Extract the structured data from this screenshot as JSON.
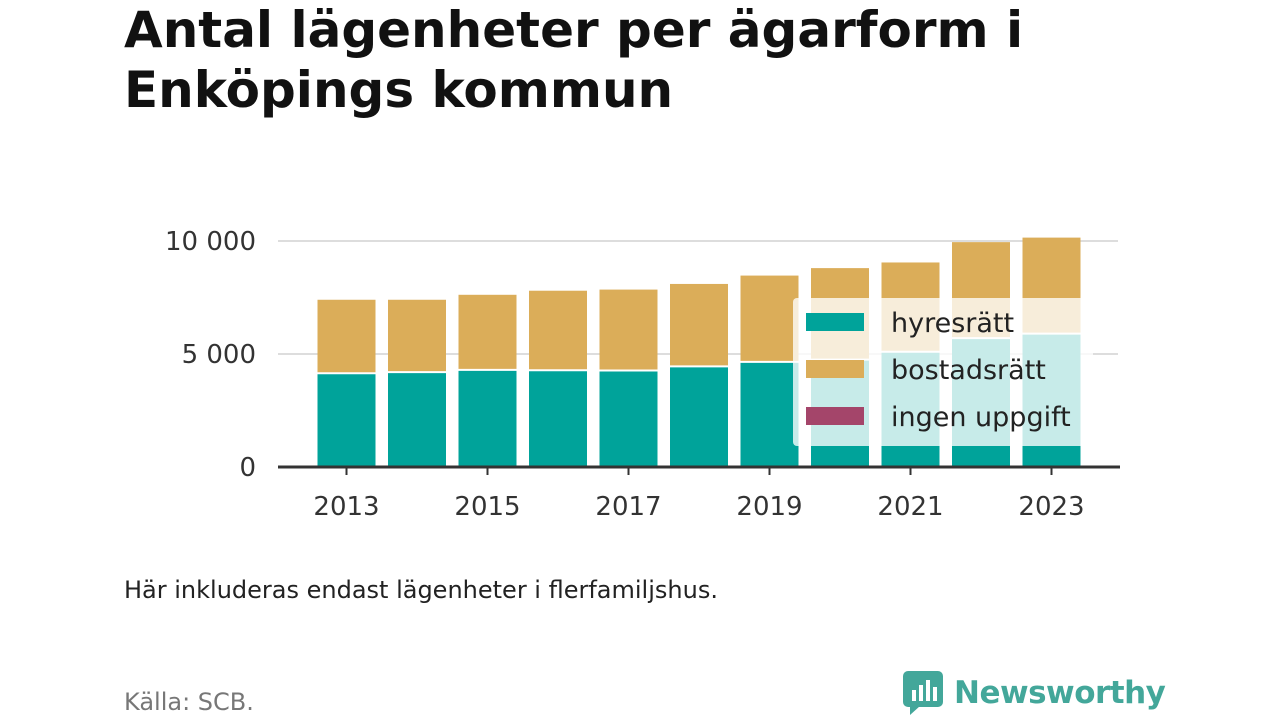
{
  "header": {
    "title_line1": "Antal lägenheter per ägarform i",
    "title_line2": "Enköpings kommun"
  },
  "footer": {
    "note": "Här inkluderas endast lägenheter i flerfamiljshus.",
    "source": "Källa: SCB.",
    "brand": "Newsworthy",
    "brand_icon": "bar-chart-speech-bubble-logo"
  },
  "colors": {
    "hyresratt": "#00a39a",
    "bostadsratt": "#dbad59",
    "ingen_uppgift": "#a4456a",
    "grid": "#dddddd",
    "axis": "#333333",
    "brand": "#43a79a"
  },
  "chart_data": {
    "type": "bar",
    "stacked": true,
    "categories": [
      "2013",
      "2014",
      "2015",
      "2016",
      "2017",
      "2018",
      "2019",
      "2020",
      "2021",
      "2022",
      "2023"
    ],
    "x_tick_labels": [
      "2013",
      "2015",
      "2017",
      "2019",
      "2021",
      "2023"
    ],
    "y_ticks": [
      0,
      5000,
      10000
    ],
    "y_tick_labels": [
      "0",
      "5 000",
      "10 000"
    ],
    "ylim": [
      0,
      10000
    ],
    "grid": true,
    "legend_position": "right, overlapping bars",
    "series": [
      {
        "name": "hyresrätt",
        "color": "#00a39a",
        "values": [
          4150,
          4200,
          4300,
          4280,
          4270,
          4450,
          4650,
          4750,
          5100,
          5700,
          5900
        ]
      },
      {
        "name": "bostadsrätt",
        "color": "#dbad59",
        "values": [
          3250,
          3200,
          3320,
          3520,
          3580,
          3650,
          3820,
          4050,
          3950,
          4250,
          4250
        ]
      },
      {
        "name": "ingen uppgift",
        "color": "#a4456a",
        "values": [
          0,
          0,
          0,
          0,
          0,
          0,
          0,
          0,
          0,
          0,
          0
        ]
      }
    ]
  }
}
